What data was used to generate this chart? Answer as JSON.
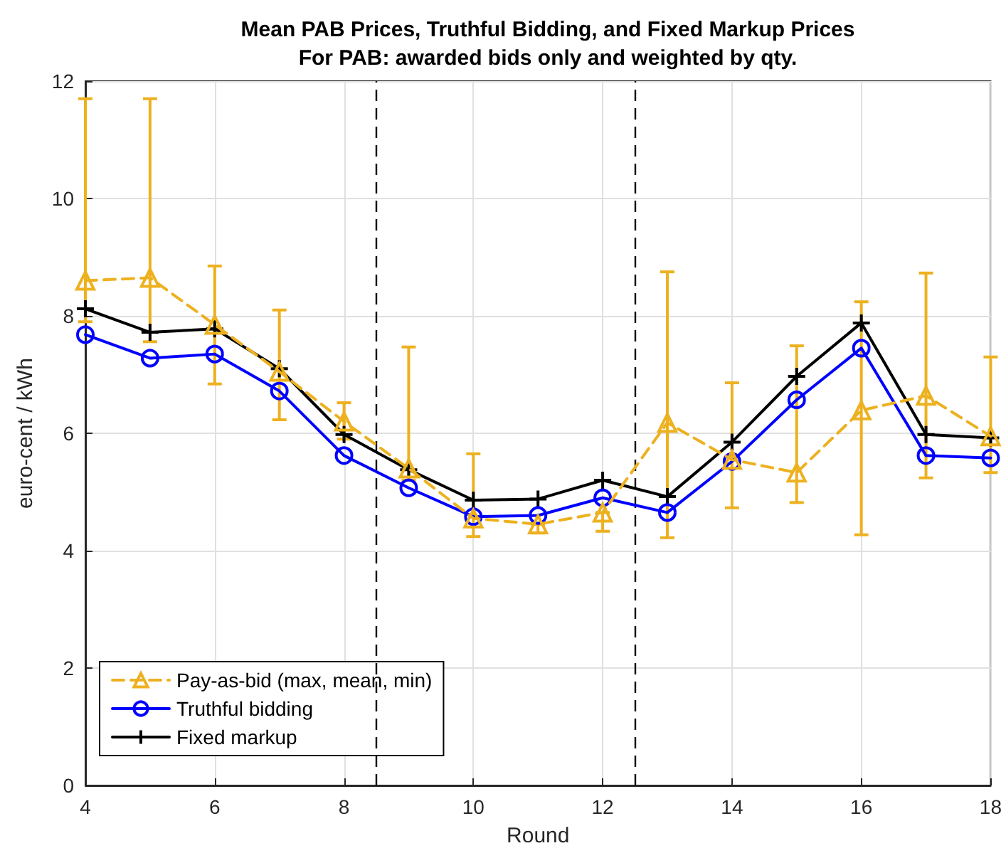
{
  "chart_data": {
    "type": "line",
    "title": "Mean PAB Prices, Truthful Bidding, and Fixed Markup Prices",
    "subtitle": "For PAB: awarded bids only and weighted by qty.",
    "xlabel": "Round",
    "ylabel": "euro-cent / kWh",
    "x": [
      4,
      5,
      6,
      7,
      8,
      9,
      10,
      11,
      12,
      13,
      14,
      15,
      16,
      17,
      18
    ],
    "series": [
      {
        "name": "Pay-as-bid (max, mean, min)",
        "color": "#edb120",
        "marker": "triangle",
        "line_style": "dashed",
        "values": [
          8.6,
          8.65,
          7.85,
          7.05,
          6.2,
          5.4,
          4.55,
          4.45,
          4.65,
          6.18,
          5.55,
          5.33,
          6.39,
          6.64,
          5.95
        ],
        "errors": [
          [
            7.9,
            11.7
          ],
          [
            7.56,
            11.7
          ],
          [
            6.84,
            8.85
          ],
          [
            6.23,
            8.1
          ],
          [
            5.9,
            6.52
          ],
          [
            5.2,
            7.47
          ],
          [
            4.24,
            5.65
          ],
          [
            4.3,
            4.45
          ],
          [
            4.33,
            4.65
          ],
          [
            4.22,
            8.75
          ],
          [
            4.73,
            6.86
          ],
          [
            4.82,
            7.49
          ],
          [
            4.27,
            8.24
          ],
          [
            5.24,
            8.73
          ],
          [
            5.33,
            7.3
          ]
        ]
      },
      {
        "name": "Truthful bidding",
        "color": "#0000ff",
        "marker": "circle",
        "line_style": "solid",
        "values": [
          7.68,
          7.28,
          7.35,
          6.72,
          5.62,
          5.07,
          4.58,
          4.6,
          4.9,
          4.65,
          5.52,
          6.57,
          7.45,
          5.62,
          5.58
        ]
      },
      {
        "name": "Fixed markup",
        "color": "#000000",
        "marker": "cross",
        "line_style": "solid",
        "values": [
          8.12,
          7.72,
          7.78,
          7.1,
          5.98,
          5.38,
          4.86,
          4.88,
          5.2,
          4.92,
          5.85,
          6.97,
          7.88,
          5.98,
          5.92
        ]
      }
    ],
    "ref_lines": [
      {
        "axis": "x",
        "value": 8.5,
        "color": "#000000",
        "line_style": "dashed"
      },
      {
        "axis": "x",
        "value": 12.5,
        "color": "#000000",
        "line_style": "dashed"
      }
    ],
    "xlim": [
      4,
      18
    ],
    "xticks": [
      4,
      6,
      8,
      10,
      12,
      14,
      16,
      18
    ],
    "ylim": [
      0,
      12
    ],
    "yticks": [
      0,
      2,
      4,
      6,
      8,
      10,
      12
    ],
    "grid": true,
    "legend": "bottom left"
  }
}
